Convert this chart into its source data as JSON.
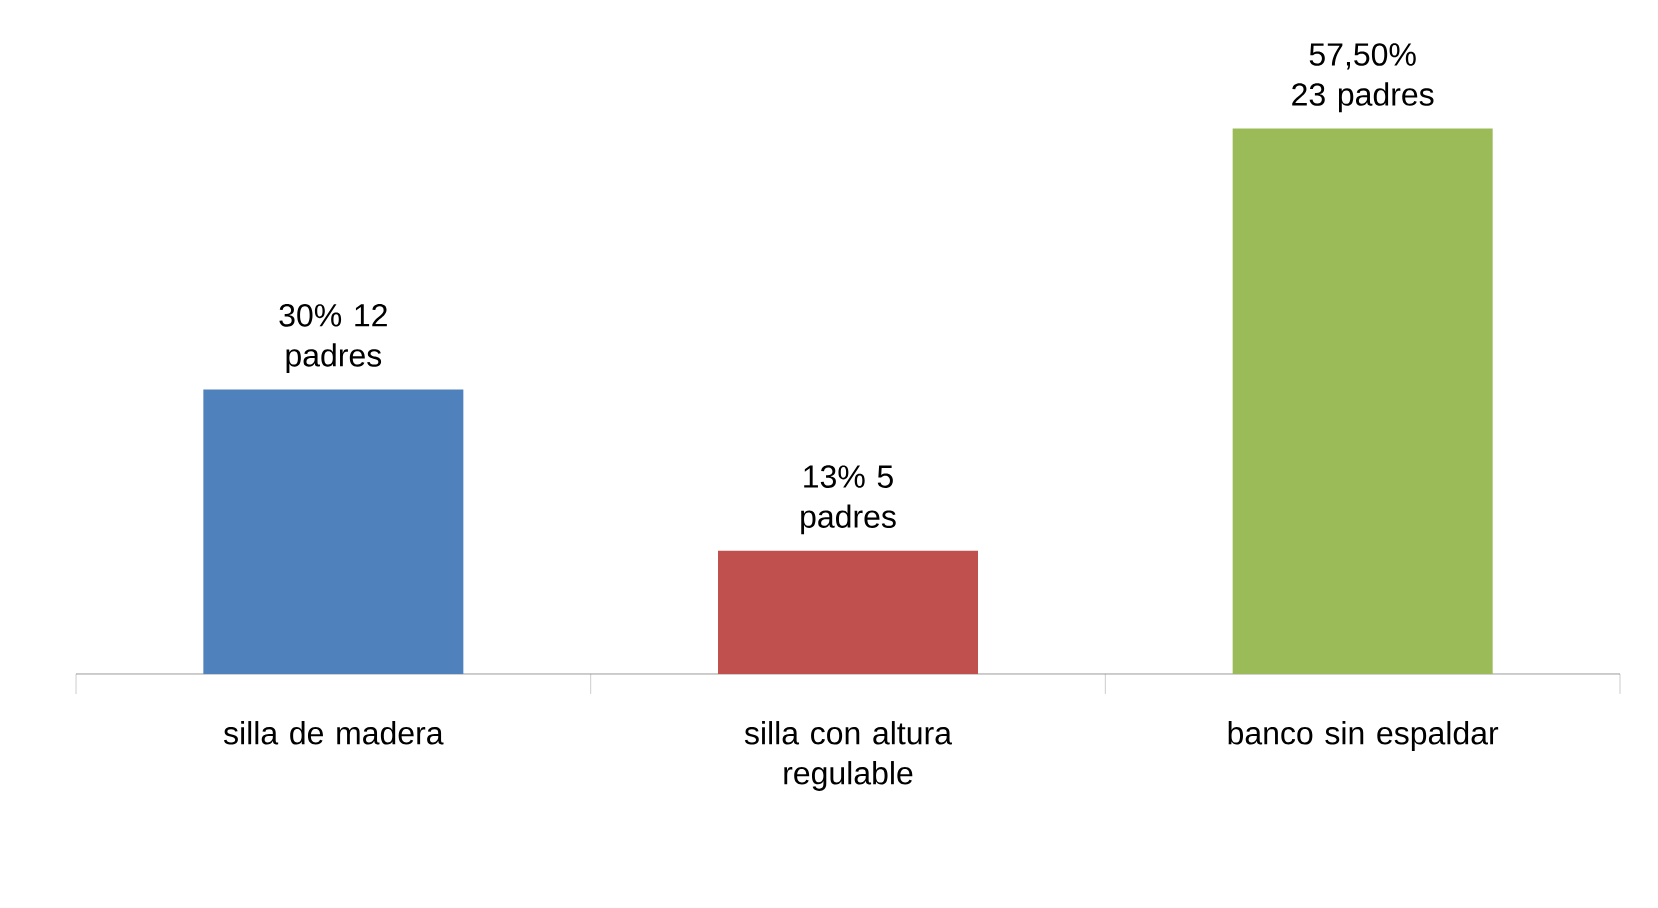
{
  "chart_data": {
    "type": "bar",
    "categories": [
      "silla de madera",
      "silla con altura regulable",
      "banco sin espaldar"
    ],
    "values": [
      30,
      13,
      57.5
    ],
    "colors": [
      "#4f81bd",
      "#c0504d",
      "#9bbb59"
    ],
    "value_labels": [
      "30% 12 padres",
      "13% 5 padres",
      "57,50% 23 padres"
    ]
  }
}
